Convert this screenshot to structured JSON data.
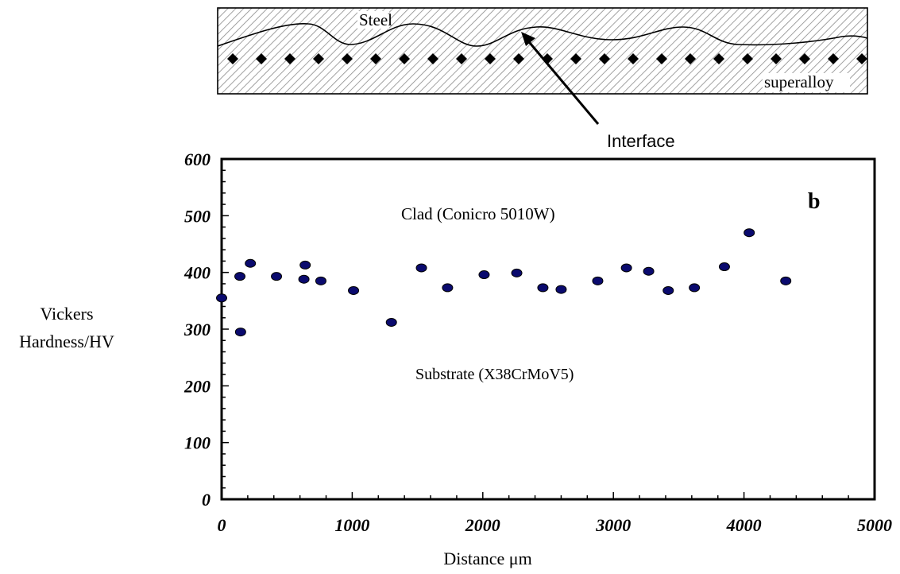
{
  "schematic": {
    "top_label": "Steel",
    "bottom_label": "superalloy",
    "interface_label": "Interface"
  },
  "chart_data": {
    "type": "scatter",
    "title": "",
    "panel_label": "b",
    "xlabel": "Distance μm",
    "ylabel_lines": [
      "Vickers",
      "Hardness/HV"
    ],
    "xlim": [
      0,
      5000
    ],
    "ylim": [
      0,
      600
    ],
    "x_ticks": [
      0,
      1000,
      2000,
      3000,
      4000,
      5000
    ],
    "y_ticks": [
      0,
      100,
      200,
      300,
      400,
      500,
      600
    ],
    "x_tick_labels": [
      "0",
      "1000",
      "2000",
      "3000",
      "4000",
      "5000"
    ],
    "y_tick_labels": [
      "0",
      "100",
      "200",
      "300",
      "400",
      "500",
      "600"
    ],
    "grid": false,
    "annotations": {
      "clad": "Clad (Conicro 5010W)",
      "substrate": "Substrate (X38CrMoV5)"
    },
    "marker_color": "#0a0a6e",
    "series": [
      {
        "x": [
          0,
          140,
          145,
          220,
          420,
          630,
          640,
          760,
          1010,
          1300,
          1530,
          1730,
          2010,
          2260,
          2460,
          2600,
          2880,
          3100,
          3270,
          3420,
          3620,
          3850,
          4040,
          4320
        ],
        "y": [
          355,
          393,
          295,
          416,
          393,
          388,
          413,
          385,
          368,
          312,
          408,
          373,
          396,
          399,
          373,
          370,
          385,
          408,
          402,
          368,
          373,
          410,
          470,
          385
        ]
      }
    ]
  }
}
